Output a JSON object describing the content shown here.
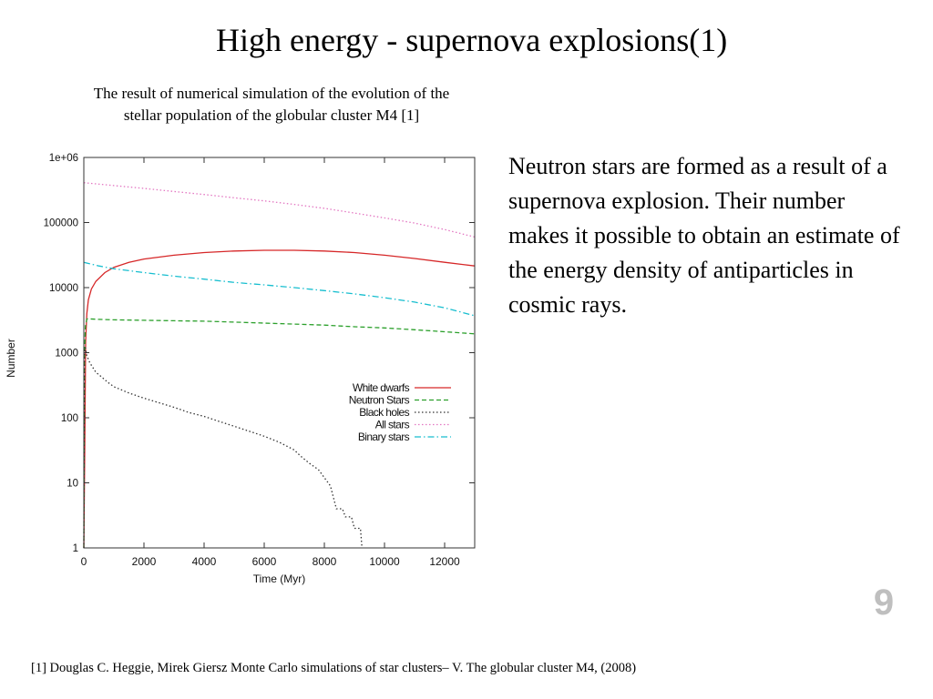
{
  "slide": {
    "title": "High energy - supernova explosions(1)",
    "caption": "The result of numerical simulation of the evolution of the stellar population of the globular cluster M4 [1]",
    "body": "Neutron stars are formed as a result of a supernova explosion. Their number makes it possible to obtain an estimate of the energy density of antiparticles in cosmic rays.",
    "page_number": "9",
    "footnote": "[1] Douglas C. Heggie, Mirek Giersz Monte Carlo simulations of star clusters– V. The globular cluster M4, (2008)"
  },
  "chart_data": {
    "type": "line",
    "title": "",
    "xlabel": "Time (Myr)",
    "ylabel": "Number",
    "xlim": [
      0,
      13000
    ],
    "ylim": [
      1,
      1000000
    ],
    "yscale": "log",
    "grid": false,
    "legend_position": "right-middle",
    "x_ticks": [
      0,
      2000,
      4000,
      6000,
      8000,
      10000,
      12000
    ],
    "x_tick_labels": [
      "0",
      "2000",
      "4000",
      "6000",
      "8000",
      "10000",
      "12000"
    ],
    "y_ticks": [
      1,
      10,
      100,
      1000,
      10000,
      100000,
      1000000
    ],
    "y_tick_labels": [
      "1",
      "10",
      "100",
      "1000",
      "10000",
      "100000",
      "1e+06"
    ],
    "series": [
      {
        "name": "White dwarfs",
        "color": "#d62728",
        "dash": "solid",
        "x": [
          0,
          30,
          60,
          100,
          150,
          250,
          400,
          700,
          1000,
          1500,
          2000,
          3000,
          4000,
          5000,
          6000,
          7000,
          8000,
          9000,
          10000,
          11000,
          12000,
          13000
        ],
        "y": [
          1,
          30,
          1500,
          4000,
          6500,
          9500,
          12500,
          17000,
          20500,
          24500,
          27500,
          31500,
          34500,
          36500,
          37500,
          37500,
          36500,
          34500,
          31500,
          28000,
          24500,
          21500
        ]
      },
      {
        "name": "Neutron Stars",
        "color": "#2ca02c",
        "dash": "dashed",
        "x": [
          0,
          20,
          50,
          100,
          200,
          500,
          1000,
          2000,
          3000,
          4000,
          5000,
          6000,
          7000,
          8000,
          9000,
          10000,
          11000,
          12000,
          13000
        ],
        "y": [
          1,
          800,
          2500,
          3300,
          3300,
          3250,
          3200,
          3150,
          3100,
          3050,
          2950,
          2850,
          2750,
          2650,
          2500,
          2400,
          2250,
          2100,
          1950
        ]
      },
      {
        "name": "Black holes",
        "color": "#333333",
        "dash": "dotted",
        "x": [
          0,
          20,
          50,
          100,
          200,
          400,
          600,
          800,
          1000,
          1500,
          2000,
          2500,
          3000,
          3500,
          4000,
          4500,
          5000,
          5500,
          6000,
          6500,
          7000,
          7200,
          7500,
          7800,
          8000,
          8200,
          8300,
          8400,
          8500,
          8600,
          8700,
          8800,
          8900,
          9000,
          9100,
          9200,
          9250
        ],
        "y": [
          1,
          1000,
          1200,
          900,
          700,
          500,
          420,
          350,
          300,
          240,
          200,
          170,
          145,
          120,
          105,
          88,
          74,
          62,
          52,
          42,
          32,
          26,
          20,
          16,
          12,
          9,
          6,
          4,
          4,
          4,
          3,
          3,
          3,
          2,
          2,
          2,
          1
        ]
      },
      {
        "name": "All stars",
        "color": "#e377c2",
        "dash": "dotted",
        "x": [
          0,
          1000,
          2000,
          3000,
          4000,
          5000,
          6000,
          7000,
          8000,
          9000,
          10000,
          11000,
          12000,
          13000
        ],
        "y": [
          410000,
          370000,
          335000,
          300000,
          270000,
          240000,
          215000,
          190000,
          165000,
          140000,
          118000,
          98000,
          78000,
          60000
        ]
      },
      {
        "name": "Binary stars",
        "color": "#17becf",
        "dash": "dashdot",
        "x": [
          0,
          500,
          1000,
          2000,
          3000,
          4000,
          5000,
          6000,
          7000,
          8000,
          9000,
          10000,
          11000,
          12000,
          13000
        ],
        "y": [
          24500,
          21500,
          19500,
          17000,
          15000,
          13500,
          12000,
          11000,
          10000,
          9000,
          8000,
          7000,
          6000,
          4900,
          3700
        ]
      }
    ]
  }
}
